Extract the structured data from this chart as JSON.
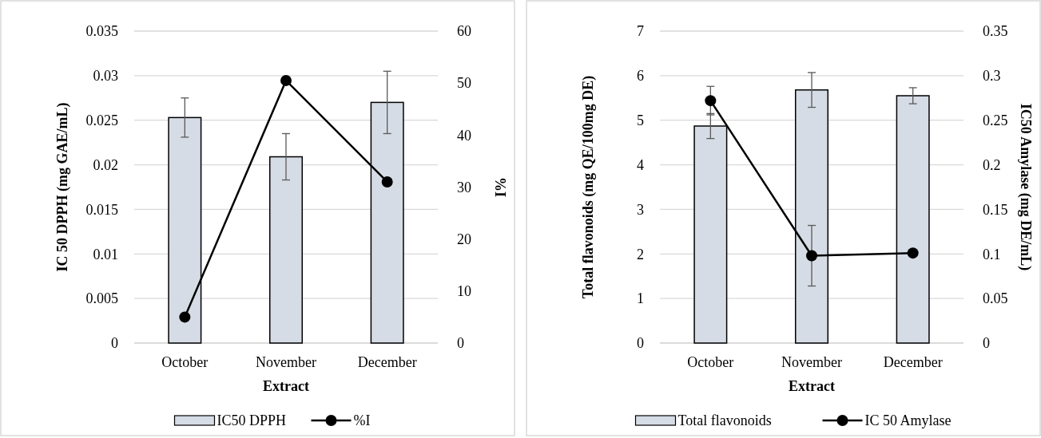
{
  "chart_data": [
    {
      "type": "bar",
      "xlabel": "Extract",
      "ylabel": "IC 50 DPPH (mg GAE/mL)",
      "y2label": "%I",
      "categories": [
        "October",
        "November",
        "December"
      ],
      "series": [
        {
          "name": "IC50 DPPH",
          "color": "#d6dce5",
          "values": [
            0.0253,
            0.0209,
            0.027
          ],
          "errors": [
            0.0022,
            0.0026,
            0.0035
          ]
        },
        {
          "name": "%I",
          "type": "line",
          "axis": "y2",
          "color": "#000000",
          "values": [
            5,
            50.5,
            31
          ],
          "marker": "circle"
        }
      ],
      "ylim": [
        0,
        0.035
      ],
      "yticks": [
        0,
        0.005,
        0.01,
        0.015,
        0.02,
        0.025,
        0.03,
        0.035
      ],
      "y2lim": [
        0,
        60
      ],
      "y2ticks": [
        0,
        10,
        20,
        30,
        40,
        50,
        60
      ],
      "grid": "y",
      "legend": "bottom"
    },
    {
      "type": "bar",
      "xlabel": "Extract",
      "ylabel": "Total flavonoids (mg QE/100mg DE)",
      "y2label": "IC50 Amylase (mg DE/mL)",
      "categories": [
        "October",
        "November",
        "December"
      ],
      "series": [
        {
          "name": "Total flavonoids",
          "color": "#d6dce5",
          "values": [
            4.87,
            5.68,
            5.55
          ],
          "errors": [
            0.28,
            0.39,
            0.18
          ]
        },
        {
          "name": "IC 50 Amylase",
          "type": "line",
          "axis": "y2",
          "color": "#000000",
          "values": [
            0.272,
            0.098,
            0.101
          ],
          "errors": [
            0.016,
            0.034,
            null
          ],
          "marker": "circle"
        }
      ],
      "ylim": [
        0,
        7
      ],
      "yticks": [
        0,
        1,
        2,
        3,
        4,
        5,
        6,
        7
      ],
      "y2lim": [
        0,
        0.35
      ],
      "y2ticks": [
        0,
        0.05,
        0.1,
        0.15,
        0.2,
        0.25,
        0.3,
        0.35
      ],
      "grid": "y",
      "legend": "bottom"
    }
  ]
}
